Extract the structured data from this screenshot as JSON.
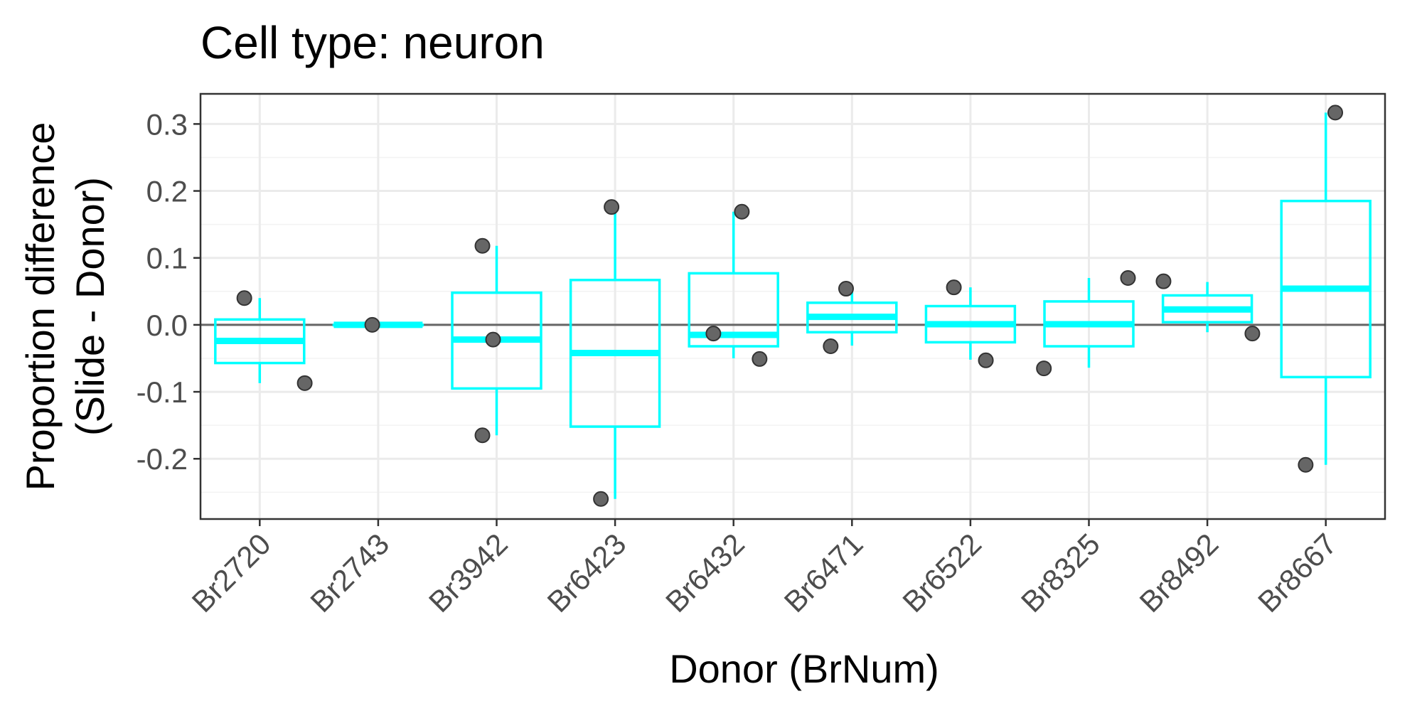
{
  "chart_data": {
    "type": "box",
    "title": "Cell type: neuron",
    "xlabel": "Donor (BrNum)",
    "ylabel_lines": [
      "Proportion difference",
      "(Slide - Donor)"
    ],
    "ylim": [
      -0.29,
      0.345
    ],
    "yticks": [
      -0.2,
      -0.1,
      0.0,
      0.1,
      0.2,
      0.3
    ],
    "ytick_labels": [
      "-0.2",
      "-0.1",
      "0.0",
      "0.1",
      "0.2",
      "0.3"
    ],
    "reference_line_y": 0.0,
    "grid": true,
    "categories": [
      "Br2720",
      "Br2743",
      "Br3942",
      "Br6423",
      "Br6432",
      "Br6471",
      "Br6522",
      "Br8325",
      "Br8492",
      "Br8667"
    ],
    "boxes": [
      {
        "category": "Br2720",
        "whisker_low": -0.087,
        "q1": -0.057,
        "median": -0.024,
        "q3": 0.008,
        "whisker_high": 0.04
      },
      {
        "category": "Br2743",
        "whisker_low": 0.0,
        "q1": 0.0,
        "median": 0.0,
        "q3": 0.0,
        "whisker_high": 0.0
      },
      {
        "category": "Br3942",
        "whisker_low": -0.165,
        "q1": -0.095,
        "median": -0.022,
        "q3": 0.048,
        "whisker_high": 0.118
      },
      {
        "category": "Br6423",
        "whisker_low": -0.26,
        "q1": -0.152,
        "median": -0.042,
        "q3": 0.067,
        "whisker_high": 0.176
      },
      {
        "category": "Br6432",
        "whisker_low": -0.05,
        "q1": -0.032,
        "median": -0.015,
        "q3": 0.077,
        "whisker_high": 0.169
      },
      {
        "category": "Br6471",
        "whisker_low": -0.031,
        "q1": -0.011,
        "median": 0.012,
        "q3": 0.033,
        "whisker_high": 0.054
      },
      {
        "category": "Br6522",
        "whisker_low": -0.052,
        "q1": -0.026,
        "median": 0.001,
        "q3": 0.028,
        "whisker_high": 0.056
      },
      {
        "category": "Br8325",
        "whisker_low": -0.064,
        "q1": -0.032,
        "median": 0.001,
        "q3": 0.035,
        "whisker_high": 0.07
      },
      {
        "category": "Br8492",
        "whisker_low": -0.011,
        "q1": 0.004,
        "median": 0.023,
        "q3": 0.044,
        "whisker_high": 0.064
      },
      {
        "category": "Br8667",
        "whisker_low": -0.209,
        "q1": -0.078,
        "median": 0.054,
        "q3": 0.185,
        "whisker_high": 0.317
      }
    ],
    "points": [
      {
        "category": "Br2720",
        "jitter": -0.13,
        "value": 0.04
      },
      {
        "category": "Br2720",
        "jitter": 0.38,
        "value": -0.087
      },
      {
        "category": "Br2743",
        "jitter": -0.05,
        "value": 0.0
      },
      {
        "category": "Br3942",
        "jitter": -0.12,
        "value": 0.118
      },
      {
        "category": "Br3942",
        "jitter": -0.03,
        "value": -0.022
      },
      {
        "category": "Br3942",
        "jitter": -0.12,
        "value": -0.165
      },
      {
        "category": "Br6423",
        "jitter": -0.03,
        "value": 0.176
      },
      {
        "category": "Br6423",
        "jitter": -0.12,
        "value": -0.26
      },
      {
        "category": "Br6432",
        "jitter": 0.07,
        "value": 0.169
      },
      {
        "category": "Br6432",
        "jitter": -0.17,
        "value": -0.013
      },
      {
        "category": "Br6432",
        "jitter": 0.22,
        "value": -0.051
      },
      {
        "category": "Br6471",
        "jitter": -0.05,
        "value": 0.054
      },
      {
        "category": "Br6471",
        "jitter": -0.18,
        "value": -0.032
      },
      {
        "category": "Br6522",
        "jitter": -0.14,
        "value": 0.056
      },
      {
        "category": "Br6522",
        "jitter": 0.13,
        "value": -0.053
      },
      {
        "category": "Br8325",
        "jitter": -0.38,
        "value": -0.065
      },
      {
        "category": "Br8325",
        "jitter": 0.33,
        "value": 0.07
      },
      {
        "category": "Br8492",
        "jitter": -0.37,
        "value": 0.065
      },
      {
        "category": "Br8492",
        "jitter": 0.38,
        "value": -0.013
      },
      {
        "category": "Br8667",
        "jitter": 0.08,
        "value": 0.317
      },
      {
        "category": "Br8667",
        "jitter": -0.17,
        "value": -0.209
      }
    ],
    "colors": {
      "box": "#00ffff",
      "point_fill": "#666666",
      "point_stroke": "#333333",
      "grid_major": "#ebebeb",
      "grid_minor": "#f3f3f3",
      "panel_border": "#333333",
      "reference_line": "#666666",
      "tick_label": "#4d4d4d"
    }
  }
}
